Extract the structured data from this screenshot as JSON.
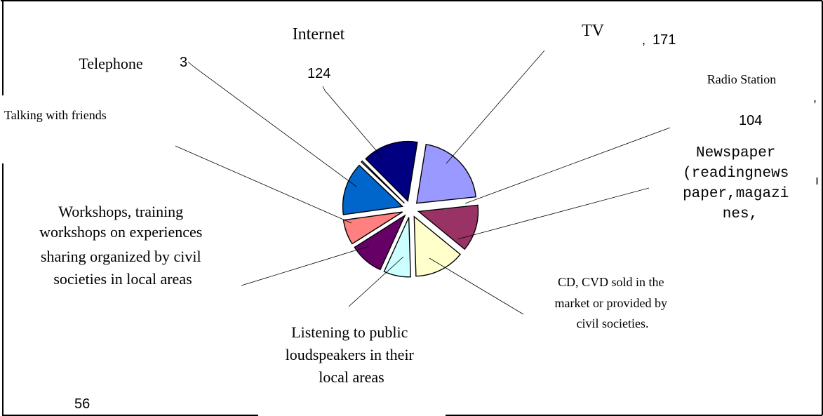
{
  "chart_data": {
    "type": "pie",
    "title": "",
    "exploded": true,
    "slices": [
      {
        "label": "TV",
        "value": 171,
        "value_label": "171",
        "color": "#9999ff"
      },
      {
        "label": "Radio Station",
        "value": 104,
        "value_label": "104",
        "color": "#993366"
      },
      {
        "label": "Newspaper (readingnewspaper,magazines,",
        "label_lines": [
          "Newspaper",
          "(readingnews",
          "paper,magazi",
          "nes,"
        ],
        "value": 112,
        "value_label": "",
        "color": "#ffffcc"
      },
      {
        "label": "CD, CVD sold in the market or provided by civil societies.",
        "label_lines": [
          "CD, CVD sold in the",
          "market or provided by",
          "civil societies."
        ],
        "value": 60,
        "value_label": "",
        "color": "#ccffff"
      },
      {
        "label": "Listening to public loudspeakers in their local areas",
        "label_lines": [
          "Listening to public",
          "loudspeakers in their",
          "local areas"
        ],
        "value": 76,
        "value_label": "",
        "color": "#660066"
      },
      {
        "label": "Workshops, training workshops on experiences sharing organized by civil societies in local areas",
        "label_lines": [
          "Workshops, training",
          "workshops on experiences",
          "sharing organized by civil",
          "societies in local areas"
        ],
        "value": 56,
        "value_label": "56",
        "color": "#ff8080"
      },
      {
        "label": "Talking with friends",
        "value": 118,
        "value_label": "",
        "color": "#0066cc"
      },
      {
        "label": "Telephone",
        "value": 3,
        "value_label": "3",
        "color": "#ccccff"
      },
      {
        "label": "Internet",
        "value": 124,
        "value_label": "124",
        "color": "#000080"
      }
    ]
  }
}
